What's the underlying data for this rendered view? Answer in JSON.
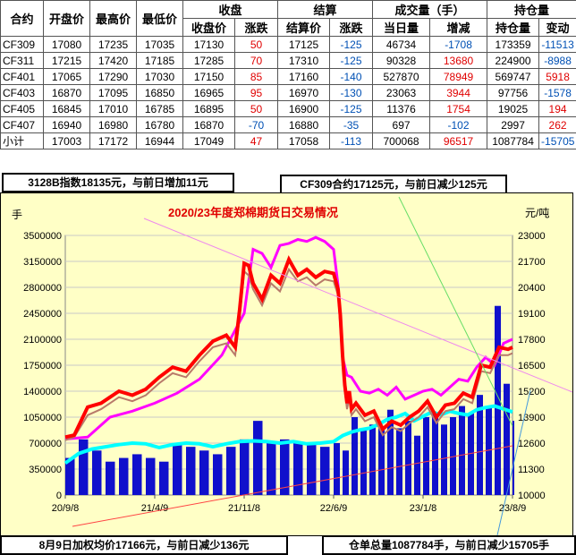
{
  "table": {
    "headers_top": {
      "contract": "合约",
      "open": "开盘价",
      "high": "最高价",
      "low": "最低价",
      "close_group": "收盘",
      "settle_group": "结算",
      "volume_group": "成交量（手）",
      "oi_group": "持仓量"
    },
    "headers_sub": {
      "close": "收盘价",
      "close_chg": "涨跌",
      "settle": "结算价",
      "settle_chg": "涨跌",
      "volume": "当日量",
      "volume_chg": "增减",
      "oi": "持仓量",
      "oi_chg": "变动"
    },
    "rows": [
      [
        "CF309",
        "17080",
        "17235",
        "17035",
        "17130",
        "50",
        "17125",
        "-125",
        "46734",
        "-1708",
        "173359",
        "-11513"
      ],
      [
        "CF311",
        "17215",
        "17420",
        "17185",
        "17285",
        "70",
        "17310",
        "-125",
        "90328",
        "13680",
        "224900",
        "-8988"
      ],
      [
        "CF401",
        "17065",
        "17290",
        "17030",
        "17150",
        "85",
        "17160",
        "-140",
        "527870",
        "78949",
        "569747",
        "5918"
      ],
      [
        "CF403",
        "16870",
        "17095",
        "16850",
        "16965",
        "95",
        "16970",
        "-130",
        "23063",
        "3944",
        "97756",
        "-1578"
      ],
      [
        "CF405",
        "16845",
        "17010",
        "16785",
        "16895",
        "50",
        "16900",
        "-125",
        "11376",
        "1754",
        "19025",
        "194"
      ],
      [
        "CF407",
        "16940",
        "16980",
        "16780",
        "16870",
        "-70",
        "16880",
        "-35",
        "697",
        "-102",
        "2997",
        "262"
      ],
      [
        "小计",
        "17003",
        "17172",
        "16944",
        "17049",
        "47",
        "17058",
        "-113",
        "700068",
        "96517",
        "1087784",
        "-15705"
      ]
    ]
  },
  "notes": {
    "index": "3128B指数18135元，与前日增加11元",
    "cf309": "CF309合约17125元，与前日减少125元",
    "weighted": "8月9日加权均价17166元，与前日减少136元",
    "warehouse": "仓单总量1087784手，与前日减少15705手"
  },
  "colors": {
    "up": "#e00000",
    "down": "#0050b4",
    "price": "#ff0000",
    "price_high": "#ff00ff",
    "warrant": "#00ffff",
    "volume": "#1010cc",
    "bg": "#ffffc6"
  },
  "chart_data": {
    "type": "line",
    "title": "2020/23年度郑棉期货日交易情况",
    "ylabel_left": "手",
    "ylabel_right": "元/吨",
    "x_ticks": [
      "20/9/8",
      "21/4/9",
      "21/11/8",
      "22/6/9",
      "23/1/8",
      "23/8/9"
    ],
    "y_left_ticks": [
      "0",
      "350000",
      "700000",
      "1050000",
      "1400000",
      "1750000",
      "2100000",
      "2450000",
      "2800000",
      "3150000",
      "3500000"
    ],
    "y_right_ticks": [
      "10000",
      "11300",
      "12600",
      "13900",
      "15200",
      "16500",
      "17800",
      "19100",
      "20400",
      "21700",
      "23000"
    ],
    "ylim_left": [
      0,
      3500000
    ],
    "ylim_right": [
      10000,
      23000
    ],
    "grid": true,
    "series": [
      {
        "type": "line",
        "axis": "right",
        "x": [
          0,
          0.02,
          0.05,
          0.08,
          0.1,
          0.12,
          0.15,
          0.18,
          0.21,
          0.24,
          0.27,
          0.3,
          0.33,
          0.36,
          0.38,
          0.39,
          0.4,
          0.41,
          0.42,
          0.44,
          0.46,
          0.48,
          0.5,
          0.52,
          0.54,
          0.56,
          0.58,
          0.6,
          0.61,
          0.615,
          0.62,
          0.625,
          0.63,
          0.635,
          0.64,
          0.65,
          0.67,
          0.69,
          0.71,
          0.73,
          0.75,
          0.77,
          0.79,
          0.81,
          0.83,
          0.85,
          0.87,
          0.89,
          0.91,
          0.93,
          0.95,
          0.97,
          0.99,
          1.0
        ],
        "values": [
          12900,
          13000,
          14400,
          14600,
          14900,
          15200,
          15000,
          15300,
          15900,
          16400,
          16200,
          17000,
          17700,
          18000,
          17400,
          19300,
          21600,
          21500,
          20600,
          19800,
          21000,
          20600,
          21800,
          21000,
          21300,
          20900,
          21200,
          21100,
          20300,
          19000,
          17000,
          15500,
          14600,
          15200,
          14300,
          14600,
          14000,
          14200,
          13300,
          13700,
          13500,
          13900,
          14200,
          14700,
          13900,
          14500,
          14600,
          15100,
          14900,
          16500,
          16400,
          17400,
          17300,
          17400
        ]
      },
      {
        "type": "line",
        "axis": "right",
        "x": [
          0,
          0.02,
          0.05,
          0.08,
          0.1,
          0.12,
          0.15,
          0.18,
          0.21,
          0.24,
          0.27,
          0.3,
          0.33,
          0.36,
          0.38,
          0.39,
          0.4,
          0.41,
          0.42,
          0.44,
          0.46,
          0.48,
          0.5,
          0.52,
          0.54,
          0.56,
          0.58,
          0.6,
          0.61,
          0.615,
          0.62,
          0.625,
          0.63,
          0.635,
          0.64,
          0.65,
          0.67,
          0.69,
          0.71,
          0.73,
          0.75,
          0.77,
          0.79,
          0.81,
          0.83,
          0.85,
          0.87,
          0.89,
          0.91,
          0.93,
          0.95,
          0.97,
          0.99,
          1.0
        ],
        "values": [
          12750,
          12900,
          14000,
          14300,
          14600,
          14900,
          14700,
          15000,
          15600,
          16100,
          15900,
          16700,
          17400,
          17600,
          17000,
          18900,
          21200,
          21000,
          20300,
          19500,
          20600,
          20200,
          21300,
          20700,
          20900,
          20500,
          20800,
          20700,
          20000,
          18500,
          16600,
          15200,
          14300,
          14900,
          14000,
          14300,
          13700,
          13900,
          13000,
          13400,
          13200,
          13600,
          13900,
          14400,
          13600,
          14200,
          14300,
          14800,
          14600,
          16200,
          16100,
          17000,
          17000,
          17100
        ]
      },
      {
        "type": "line",
        "axis": "right",
        "x": [
          0,
          0.05,
          0.1,
          0.15,
          0.2,
          0.25,
          0.3,
          0.35,
          0.4,
          0.42,
          0.44,
          0.46,
          0.48,
          0.5,
          0.52,
          0.54,
          0.56,
          0.58,
          0.6,
          0.61,
          0.62,
          0.63,
          0.64,
          0.66,
          0.68,
          0.7,
          0.72,
          0.74,
          0.76,
          0.78,
          0.8,
          0.82,
          0.84,
          0.86,
          0.88,
          0.9,
          0.92,
          0.94,
          0.96,
          0.98,
          1.0
        ],
        "values": [
          12800,
          12900,
          13900,
          14200,
          14600,
          15100,
          15800,
          17000,
          19100,
          22300,
          22100,
          21400,
          22500,
          22600,
          22800,
          22700,
          22900,
          22700,
          22300,
          20500,
          16900,
          16000,
          15900,
          15200,
          15100,
          15300,
          15000,
          15400,
          14800,
          15000,
          15200,
          15300,
          15000,
          15400,
          15800,
          15700,
          16400,
          16900,
          16500,
          17600,
          17800
        ]
      },
      {
        "type": "line",
        "axis": "left",
        "x": [
          0,
          0.03,
          0.06,
          0.09,
          0.12,
          0.15,
          0.18,
          0.21,
          0.24,
          0.27,
          0.3,
          0.33,
          0.36,
          0.39,
          0.42,
          0.45,
          0.48,
          0.51,
          0.54,
          0.57,
          0.6,
          0.62,
          0.64,
          0.66,
          0.68,
          0.7,
          0.72,
          0.74,
          0.76,
          0.78,
          0.8,
          0.82,
          0.84,
          0.86,
          0.88,
          0.9,
          0.92,
          0.94,
          0.96,
          0.98,
          1.0
        ],
        "values": [
          430000,
          560000,
          620000,
          650000,
          680000,
          700000,
          690000,
          640000,
          680000,
          700000,
          690000,
          650000,
          690000,
          720000,
          730000,
          720000,
          700000,
          720000,
          690000,
          700000,
          720000,
          800000,
          850000,
          880000,
          900000,
          950000,
          1020000,
          1050000,
          1100000,
          1000000,
          1060000,
          1120000,
          1080000,
          1130000,
          1100000,
          1080000,
          1150000,
          1180000,
          1200000,
          1160000,
          1120000
        ]
      },
      {
        "type": "bar",
        "axis": "left",
        "x": [
          0,
          0.03,
          0.06,
          0.09,
          0.12,
          0.15,
          0.18,
          0.21,
          0.24,
          0.27,
          0.3,
          0.33,
          0.36,
          0.39,
          0.42,
          0.45,
          0.48,
          0.51,
          0.54,
          0.57,
          0.6,
          0.62,
          0.64,
          0.66,
          0.68,
          0.7,
          0.72,
          0.74,
          0.76,
          0.78,
          0.8,
          0.82,
          0.84,
          0.86,
          0.88,
          0.9,
          0.92,
          0.94,
          0.96,
          0.98,
          1.0
        ],
        "values": [
          500000,
          750000,
          600000,
          450000,
          500000,
          550000,
          500000,
          450000,
          700000,
          650000,
          600000,
          550000,
          650000,
          750000,
          1000000,
          700000,
          750000,
          700000,
          700000,
          650000,
          700000,
          600000,
          1050000,
          900000,
          950000,
          900000,
          1150000,
          900000,
          1000000,
          800000,
          1050000,
          1100000,
          950000,
          1050000,
          1200000,
          1100000,
          1350000,
          1200000,
          2550000,
          1500000,
          1000000
        ]
      }
    ]
  }
}
